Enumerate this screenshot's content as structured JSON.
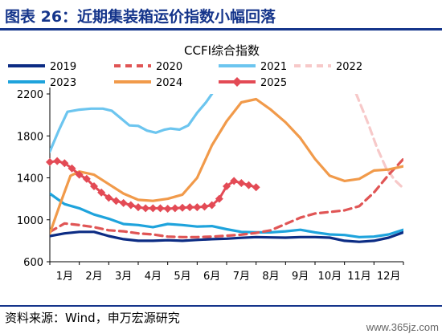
{
  "header": {
    "title": "图表 26：近期集装箱运价指数小幅回落"
  },
  "footer": {
    "source": "资料来源：Wind，申万宏源研究"
  },
  "watermark": "www.365jz.com",
  "chart_data": {
    "type": "line",
    "title": "CCFI综合指数",
    "xlabel": "",
    "ylabel": "",
    "categories": [
      "1月",
      "2月",
      "3月",
      "4月",
      "5月",
      "6月",
      "7月",
      "8月",
      "9月",
      "10月",
      "11月",
      "12月"
    ],
    "ylim": [
      600,
      2200
    ],
    "yticks": [
      600,
      1000,
      1400,
      1800,
      2200
    ],
    "grid": false,
    "legend_position": "top",
    "series": [
      {
        "name": "2019",
        "color": "#0c2c84",
        "style": "solid",
        "marker": false,
        "x": [
          0.0,
          0.5,
          1.0,
          1.5,
          2.0,
          2.5,
          3.0,
          3.5,
          4.0,
          4.5,
          5.0,
          5.5,
          6.0,
          6.5,
          7.0,
          7.5,
          8.0,
          8.5,
          9.0,
          9.5,
          10.0,
          10.5,
          11.0,
          11.5,
          12.0
        ],
        "values": [
          845,
          870,
          885,
          885,
          845,
          815,
          800,
          800,
          805,
          800,
          808,
          815,
          820,
          828,
          835,
          832,
          830,
          835,
          835,
          830,
          800,
          790,
          800,
          830,
          880
        ]
      },
      {
        "name": "2020",
        "color": "#e05555",
        "style": "dashed",
        "marker": false,
        "x": [
          0.0,
          0.5,
          1.0,
          1.5,
          2.0,
          2.5,
          3.0,
          3.5,
          4.0,
          4.5,
          5.0,
          5.5,
          6.0,
          6.5,
          7.0,
          7.5,
          8.0,
          8.5,
          9.0,
          9.5,
          10.0,
          10.5,
          11.0,
          11.5,
          12.0
        ],
        "values": [
          885,
          965,
          950,
          930,
          900,
          890,
          870,
          860,
          840,
          835,
          835,
          840,
          848,
          858,
          875,
          900,
          960,
          1020,
          1060,
          1075,
          1090,
          1130,
          1260,
          1430,
          1580
        ]
      },
      {
        "name": "2021",
        "color": "#6cc5ef",
        "style": "solid",
        "marker": false,
        "x": [
          0.0,
          0.3,
          0.6,
          1.0,
          1.4,
          1.8,
          2.1,
          2.4,
          2.7,
          3.0,
          3.3,
          3.6,
          3.9,
          4.1,
          4.4,
          4.7,
          5.0,
          5.3,
          5.5
        ],
        "values": [
          1650,
          1850,
          2030,
          2050,
          2060,
          2060,
          2040,
          1970,
          1900,
          1895,
          1850,
          1830,
          1860,
          1870,
          1860,
          1900,
          2020,
          2120,
          2200
        ]
      },
      {
        "name": "2022",
        "color": "#f7c9c9",
        "style": "dashed",
        "marker": false,
        "x": [
          10.4,
          10.8,
          11.1,
          11.4,
          11.7,
          12.0
        ],
        "values": [
          2200,
          1920,
          1690,
          1500,
          1380,
          1300
        ]
      },
      {
        "name": "2023",
        "color": "#1ea3dc",
        "style": "solid",
        "marker": false,
        "x": [
          0.0,
          0.5,
          1.0,
          1.5,
          2.0,
          2.5,
          3.0,
          3.5,
          4.0,
          4.5,
          5.0,
          5.5,
          6.0,
          6.5,
          7.0,
          7.5,
          8.0,
          8.5,
          9.0,
          9.5,
          10.0,
          10.5,
          11.0,
          11.5,
          12.0
        ],
        "values": [
          1250,
          1150,
          1110,
          1050,
          1010,
          960,
          950,
          930,
          960,
          950,
          935,
          940,
          910,
          885,
          880,
          880,
          890,
          905,
          880,
          860,
          855,
          835,
          840,
          860,
          905
        ]
      },
      {
        "name": "2024",
        "color": "#f19a4a",
        "style": "solid",
        "marker": false,
        "x": [
          0.0,
          0.35,
          0.7,
          1.0,
          1.5,
          2.0,
          2.5,
          3.0,
          3.5,
          4.0,
          4.5,
          5.0,
          5.5,
          6.0,
          6.5,
          7.0,
          7.5,
          8.0,
          8.5,
          9.0,
          9.5,
          10.0,
          10.5,
          11.0,
          11.5,
          12.0
        ],
        "values": [
          870,
          1150,
          1420,
          1460,
          1430,
          1340,
          1250,
          1190,
          1180,
          1200,
          1240,
          1400,
          1710,
          1940,
          2120,
          2150,
          2050,
          1930,
          1780,
          1580,
          1420,
          1370,
          1390,
          1470,
          1480,
          1510
        ]
      },
      {
        "name": "2025",
        "color": "#e34a55",
        "style": "solid",
        "marker": true,
        "x": [
          0.0,
          0.25,
          0.5,
          0.75,
          1.0,
          1.25,
          1.5,
          1.75,
          2.0,
          2.25,
          2.5,
          2.75,
          3.0,
          3.25,
          3.5,
          3.75,
          4.0,
          4.25,
          4.5,
          4.75,
          5.0,
          5.25,
          5.5,
          5.75,
          6.0,
          6.25,
          6.5,
          6.75,
          7.0
        ],
        "values": [
          1550,
          1560,
          1540,
          1490,
          1430,
          1390,
          1320,
          1260,
          1210,
          1180,
          1160,
          1140,
          1120,
          1110,
          1110,
          1110,
          1105,
          1110,
          1115,
          1120,
          1120,
          1125,
          1140,
          1200,
          1320,
          1370,
          1350,
          1330,
          1310
        ]
      }
    ]
  }
}
